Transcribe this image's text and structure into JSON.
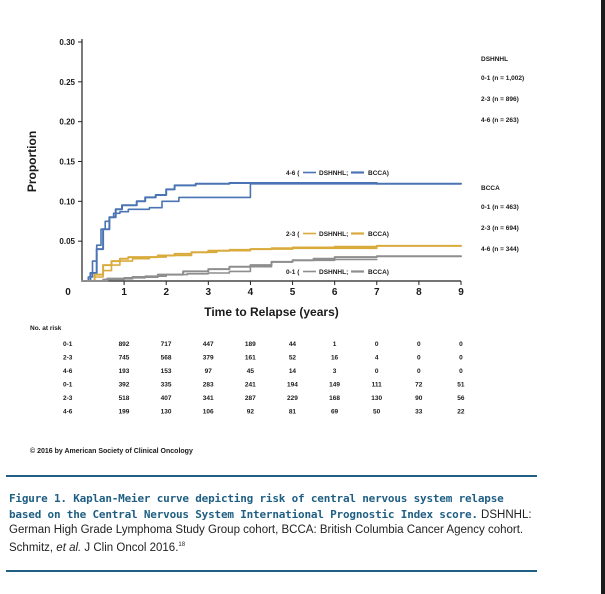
{
  "chart_data": {
    "type": "line",
    "subtype": "step",
    "xlabel": "Time to Relapse (years)",
    "ylabel": "Proportion",
    "xlim": [
      0,
      9
    ],
    "ylim": [
      0,
      0.3
    ],
    "x_ticks": [
      "0",
      "1",
      "2",
      "3",
      "4",
      "5",
      "6",
      "7",
      "8",
      "9"
    ],
    "y_ticks": [
      "0.05",
      "0.10",
      "0.15",
      "0.20",
      "0.25",
      "0.30"
    ],
    "grid": false,
    "colors": {
      "4-6": "#4a74b4",
      "2-3": "#d9ab3c",
      "0-1": "#8e8e8e"
    },
    "series": [
      {
        "name": "4-6 DSHNHL",
        "group": "4-6",
        "cohort": "DSHNHL",
        "x": [
          0,
          0.15,
          0.25,
          0.35,
          0.45,
          0.55,
          0.65,
          0.75,
          0.9,
          1.1,
          1.3,
          1.6,
          1.9,
          2.3,
          2.9,
          3.3,
          3.8,
          4.0,
          4.3,
          5.0,
          6.0,
          7.0
        ],
        "y": [
          0,
          0.005,
          0.025,
          0.045,
          0.065,
          0.075,
          0.08,
          0.085,
          0.087,
          0.09,
          0.09,
          0.092,
          0.1,
          0.105,
          0.105,
          0.105,
          0.105,
          0.122,
          0.122,
          0.122,
          0.122,
          0.122
        ]
      },
      {
        "name": "4-6 BCCA",
        "group": "4-6",
        "cohort": "BCCA",
        "x": [
          0,
          0.2,
          0.35,
          0.5,
          0.65,
          0.8,
          0.95,
          1.05,
          1.3,
          1.5,
          1.75,
          2.0,
          2.2,
          2.7,
          3.5,
          4.2,
          5.0,
          6.0,
          7.0,
          8.0,
          9.0
        ],
        "y": [
          0,
          0.01,
          0.04,
          0.065,
          0.08,
          0.09,
          0.095,
          0.095,
          0.1,
          0.105,
          0.108,
          0.115,
          0.12,
          0.122,
          0.123,
          0.123,
          0.123,
          0.123,
          0.122,
          0.122,
          0.122
        ]
      },
      {
        "name": "2-3 DSHNHL",
        "group": "2-3",
        "cohort": "DSHNHL",
        "x": [
          0,
          0.3,
          0.5,
          0.7,
          0.9,
          1.2,
          1.6,
          2.0,
          2.6,
          3.2,
          4.0,
          5.0,
          6.0,
          7.0
        ],
        "y": [
          0,
          0.005,
          0.013,
          0.02,
          0.025,
          0.028,
          0.03,
          0.032,
          0.036,
          0.038,
          0.04,
          0.041,
          0.041,
          0.042
        ]
      },
      {
        "name": "2-3 BCCA",
        "group": "2-3",
        "cohort": "BCCA",
        "x": [
          0,
          0.3,
          0.5,
          0.7,
          0.9,
          1.1,
          1.4,
          1.8,
          2.2,
          2.6,
          3.0,
          3.5,
          4.0,
          4.5,
          5.0,
          6.0,
          7.0,
          8.0,
          9.0
        ],
        "y": [
          0,
          0.008,
          0.02,
          0.025,
          0.028,
          0.03,
          0.03,
          0.032,
          0.034,
          0.036,
          0.038,
          0.039,
          0.04,
          0.041,
          0.042,
          0.043,
          0.044,
          0.044,
          0.044
        ]
      },
      {
        "name": "0-1 DSHNHL",
        "group": "0-1",
        "cohort": "DSHNHL",
        "x": [
          0,
          0.5,
          1.0,
          1.5,
          2.0,
          2.5,
          3.0,
          3.5,
          4.0,
          4.5,
          5.0,
          6.0,
          7.0
        ],
        "y": [
          0,
          0.002,
          0.004,
          0.006,
          0.008,
          0.009,
          0.01,
          0.012,
          0.018,
          0.024,
          0.026,
          0.027,
          0.027
        ]
      },
      {
        "name": "0-1 BCCA",
        "group": "0-1",
        "cohort": "BCCA",
        "x": [
          0,
          0.6,
          1.2,
          1.8,
          2.4,
          3.0,
          3.5,
          4.0,
          4.5,
          5.0,
          5.5,
          6.0,
          7.0,
          8.0,
          9.0
        ],
        "y": [
          0,
          0.003,
          0.005,
          0.008,
          0.012,
          0.015,
          0.018,
          0.02,
          0.024,
          0.026,
          0.028,
          0.03,
          0.031,
          0.031,
          0.031
        ]
      }
    ],
    "inline_legends": [
      {
        "group": "4-6",
        "prefix": "4-6 (",
        "a_label": "DSHNHL;",
        "b_label": "BCCA)"
      },
      {
        "group": "2-3",
        "prefix": "2-3 (",
        "a_label": "DSHNHL;",
        "b_label": "BCCA)"
      },
      {
        "group": "0-1",
        "prefix": "0-1 (",
        "a_label": "DSHNHL;",
        "b_label": "BCCA)"
      }
    ],
    "side_legend": {
      "blocks": [
        {
          "title": "DSHNHL",
          "rows": [
            "0-1 (n = 1,002)",
            "2-3  (n = 896)",
            "4-6  (n = 263)"
          ]
        },
        {
          "title": "BCCA",
          "rows": [
            "0-1  (n = 463)",
            "2-3  (n = 694)",
            "4-6  (n = 344)"
          ]
        }
      ]
    },
    "risk_table": {
      "title": "No. at risk",
      "rows": [
        {
          "label": "0-1",
          "values": [
            "892",
            "717",
            "447",
            "189",
            "44",
            "1",
            "0",
            "0",
            "0"
          ]
        },
        {
          "label": "2-3",
          "values": [
            "745",
            "568",
            "379",
            "161",
            "52",
            "16",
            "4",
            "0",
            "0"
          ]
        },
        {
          "label": "4-6",
          "values": [
            "193",
            "153",
            "97",
            "45",
            "14",
            "3",
            "0",
            "0",
            "0"
          ]
        },
        {
          "label": "0-1",
          "values": [
            "392",
            "335",
            "283",
            "241",
            "194",
            "149",
            "111",
            "72",
            "51"
          ]
        },
        {
          "label": "2-3",
          "values": [
            "518",
            "407",
            "341",
            "287",
            "229",
            "168",
            "130",
            "90",
            "56"
          ]
        },
        {
          "label": "4-6",
          "values": [
            "199",
            "130",
            "106",
            "92",
            "81",
            "69",
            "50",
            "33",
            "22"
          ]
        }
      ]
    }
  },
  "copyright": "© 2016 by American Society of Clinical Oncology",
  "caption": {
    "title": "Figure 1. Kaplan-Meier curve depicting risk of central nervous system relapse based on the Central Nervous System International Prognostic Index score.",
    "body_pre": " DSHNHL: German High Grade Lymphoma Study Group cohort, BCCA: British Columbia Cancer Agency cohort. Schmitz, ",
    "body_italic": "et al.",
    "body_post": " J Clin Oncol 2016.",
    "ref": "18"
  }
}
